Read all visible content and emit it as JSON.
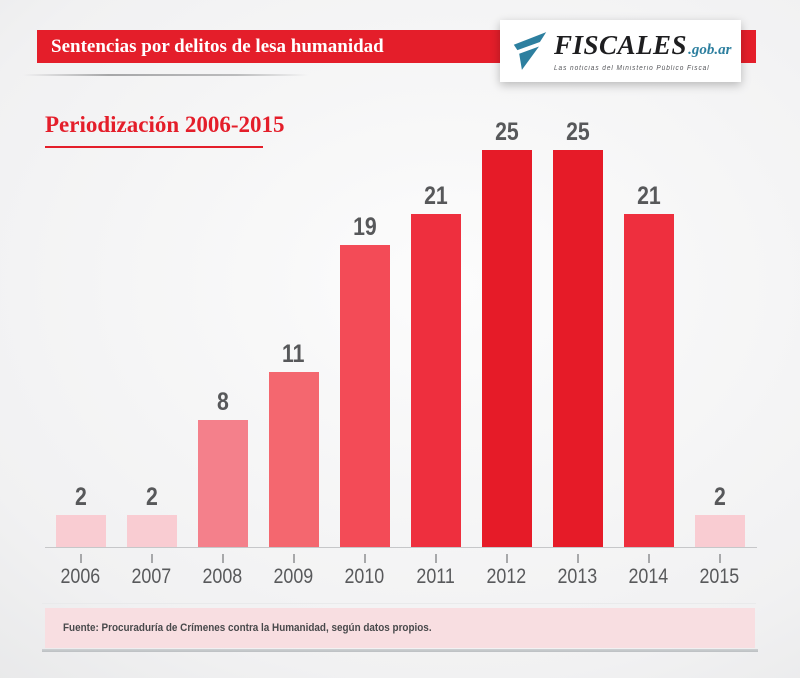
{
  "header": {
    "title": "Sentencias por delitos de lesa humanidad",
    "logo": {
      "name": "FISCALES",
      "domain": ".gob.ar",
      "tagline": "Las noticias del Ministerio Público Fiscal"
    }
  },
  "subtitle": "Periodización 2006-2015",
  "chart_data": {
    "type": "bar",
    "title": "Sentencias por delitos de lesa humanidad",
    "subtitle": "Periodización 2006-2015",
    "categories": [
      "2006",
      "2007",
      "2008",
      "2009",
      "2010",
      "2011",
      "2012",
      "2013",
      "2014",
      "2015"
    ],
    "values": [
      2,
      2,
      8,
      11,
      19,
      21,
      25,
      25,
      21,
      2
    ],
    "bar_colors": [
      "#f9ccd2",
      "#f9ccd2",
      "#f4808b",
      "#f4676f",
      "#f34b57",
      "#ee2f3e",
      "#e61b28",
      "#e61b28",
      "#ee2f3e",
      "#f9ccd2"
    ],
    "value_label_color": "#57585a",
    "axis_label_color": "#58595b",
    "xlabel": "",
    "ylabel": "",
    "ylim": [
      0,
      27
    ],
    "grid": false,
    "data_labels": true,
    "legend": false
  },
  "footer": {
    "source": "Fuente: Procuraduría de Crímenes contra la Humanidad, según datos propios."
  },
  "colors": {
    "brand_red": "#e41e2a",
    "logo_teal": "#2d7f9f",
    "footer_pink": "#f8dee1"
  }
}
